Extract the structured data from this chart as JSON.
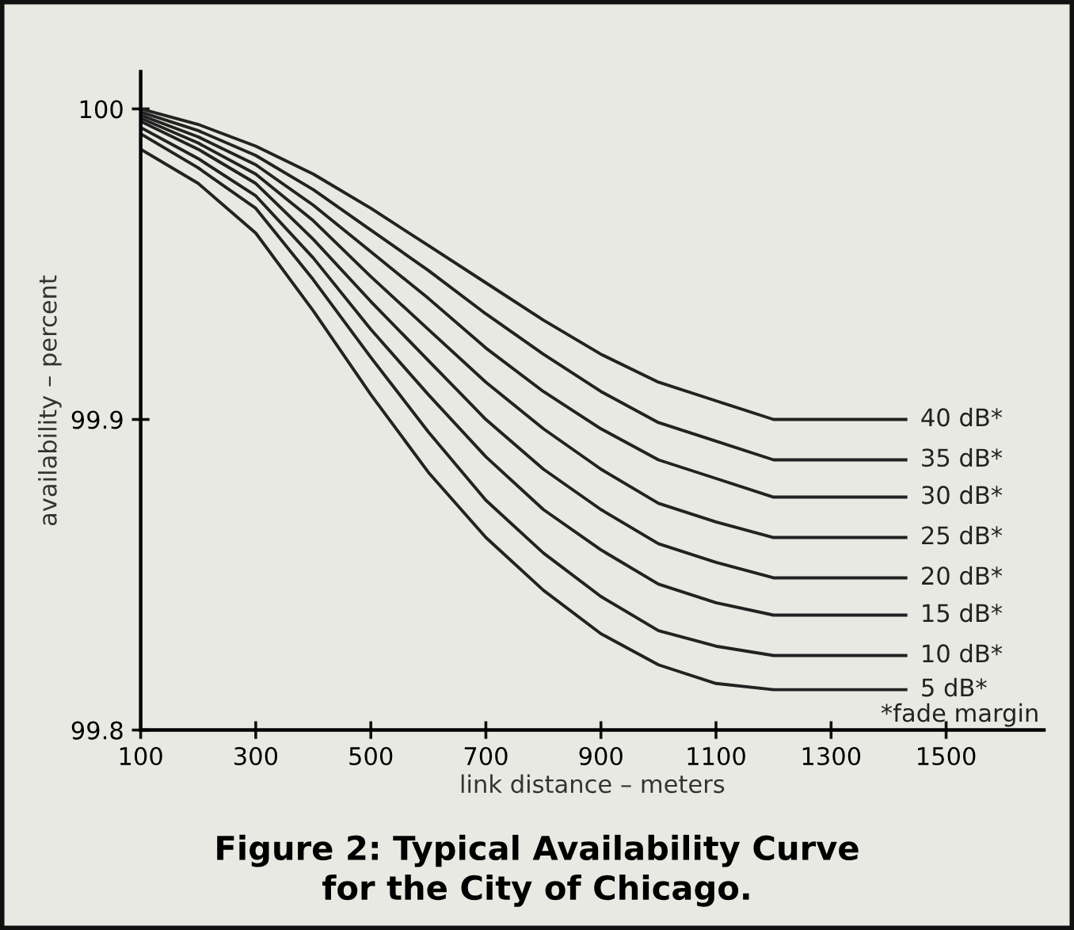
{
  "chart_data": {
    "type": "line",
    "title": "Figure 2: Typical Availability Curve\nfor the City of Chicago.",
    "xlabel": "link distance – meters",
    "ylabel": "availability – percent",
    "x": [
      100,
      200,
      300,
      400,
      500,
      600,
      700,
      800,
      900,
      1000,
      1100,
      1200,
      1430
    ],
    "series": [
      {
        "name": "40 dB*",
        "color": "#222222",
        "values": [
          100.0,
          99.995,
          99.988,
          99.979,
          99.968,
          99.956,
          99.944,
          99.932,
          99.921,
          99.912,
          99.906,
          99.9,
          99.9
        ]
      },
      {
        "name": "35 dB*",
        "color": "#222222",
        "values": [
          99.999,
          99.993,
          99.985,
          99.974,
          99.961,
          99.948,
          99.934,
          99.921,
          99.909,
          99.899,
          99.893,
          99.887,
          99.887
        ]
      },
      {
        "name": "30 dB*",
        "color": "#222222",
        "values": [
          99.998,
          99.991,
          99.982,
          99.969,
          99.954,
          99.939,
          99.923,
          99.909,
          99.897,
          99.887,
          99.881,
          99.875,
          99.875
        ]
      },
      {
        "name": "25 dB*",
        "color": "#222222",
        "values": [
          99.997,
          99.989,
          99.979,
          99.964,
          99.946,
          99.929,
          99.912,
          99.897,
          99.884,
          99.873,
          99.867,
          99.862,
          99.862
        ]
      },
      {
        "name": "20 dB*",
        "color": "#222222",
        "values": [
          99.996,
          99.987,
          99.976,
          99.958,
          99.938,
          99.919,
          99.9,
          99.884,
          99.871,
          99.86,
          99.854,
          99.849,
          99.849
        ]
      },
      {
        "name": "15 dB*",
        "color": "#222222",
        "values": [
          99.994,
          99.984,
          99.972,
          99.952,
          99.929,
          99.908,
          99.888,
          99.871,
          99.858,
          99.847,
          99.841,
          99.837,
          99.837
        ]
      },
      {
        "name": "10 dB*",
        "color": "#222222",
        "values": [
          99.992,
          99.981,
          99.968,
          99.945,
          99.92,
          99.896,
          99.874,
          99.857,
          99.843,
          99.832,
          99.827,
          99.824,
          99.824
        ]
      },
      {
        "name": "5 dB*",
        "color": "#222222",
        "values": [
          99.987,
          99.976,
          99.96,
          99.935,
          99.908,
          99.883,
          99.862,
          99.845,
          99.831,
          99.821,
          99.815,
          99.813,
          99.813
        ]
      }
    ],
    "annotations": [
      "*fade margin"
    ],
    "xlim": [
      100,
      1670
    ],
    "ylim": [
      99.8,
      100.012
    ],
    "xticks": [
      100,
      300,
      500,
      700,
      900,
      1100,
      1300,
      1500
    ],
    "yticks": [
      99.8,
      99.9,
      {
        "value": 100.0,
        "label": "100"
      }
    ],
    "grid": false,
    "legend": false,
    "marker": "none",
    "line_style": "solid"
  }
}
